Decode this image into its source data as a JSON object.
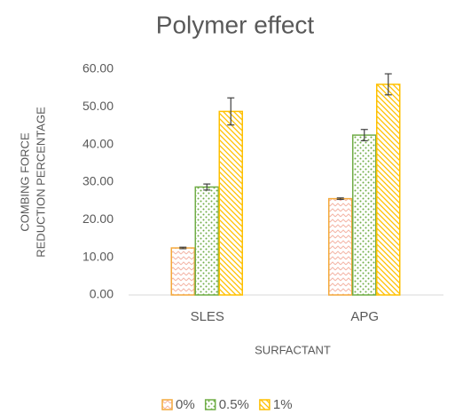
{
  "chart_data": {
    "type": "bar",
    "title": "Polymer effect",
    "y_label": [
      "COMBING FORCE",
      "REDUCTION PERCENTAGE"
    ],
    "x_label": "SURFACTANT",
    "categories": [
      "SLES",
      "APG"
    ],
    "series": [
      {
        "name": "0%",
        "color": "#f4a93c",
        "values": [
          12.5,
          25.6
        ],
        "errors": [
          0.2,
          0.2
        ]
      },
      {
        "name": "0.5%",
        "color": "#70ad47",
        "values": [
          28.7,
          42.5
        ],
        "errors": [
          0.8,
          1.5
        ]
      },
      {
        "name": "1%",
        "color": "#ffc000",
        "values": [
          48.8,
          56.0
        ],
        "errors": [
          3.6,
          2.8
        ]
      }
    ],
    "ylim": [
      0,
      60
    ],
    "yticks": [
      {
        "value": 0,
        "label": "0.00"
      },
      {
        "value": 10,
        "label": "10.00"
      },
      {
        "value": 20,
        "label": "20.00"
      },
      {
        "value": 30,
        "label": "30.00"
      },
      {
        "value": 40,
        "label": "40.00"
      },
      {
        "value": 50,
        "label": "50.00"
      },
      {
        "value": 60,
        "label": "60.00"
      }
    ],
    "grid": false,
    "legend": "bottom"
  }
}
